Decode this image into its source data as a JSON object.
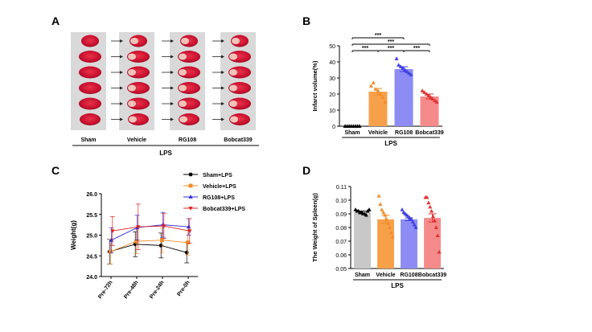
{
  "panels": {
    "a": {
      "letter": "A",
      "groups": [
        "Sham",
        "Vehicle",
        "RG108",
        "Bobcat339"
      ],
      "xlabel": "LPS"
    },
    "b": {
      "letter": "B"
    },
    "c": {
      "letter": "C"
    },
    "d": {
      "letter": "D"
    }
  },
  "chart_data": [
    {
      "panel": "B",
      "type": "bar",
      "categories": [
        "Sham",
        "Vehicle",
        "RG108",
        "Bobcat339"
      ],
      "values": [
        0,
        21.5,
        35.5,
        18.5
      ],
      "errors": [
        0,
        2.0,
        1.5,
        1.5
      ],
      "colors": [
        "#c8c8c8",
        "#f7a04a",
        "#8c8cf4",
        "#f48a8a"
      ],
      "point_colors": [
        "#000000",
        "#f28c28",
        "#3f3fe0",
        "#e03030"
      ],
      "points": [
        [
          0,
          0,
          0,
          0,
          0,
          0,
          0,
          0
        ],
        [
          25,
          27,
          23,
          22,
          20,
          18,
          15
        ],
        [
          42,
          38,
          37,
          36,
          35,
          34,
          33,
          32
        ],
        [
          22,
          21,
          20,
          19,
          18,
          17,
          16,
          15
        ]
      ],
      "ylabel": "Infarct volume(%)",
      "xlabel": "LPS",
      "ylim": [
        0,
        50
      ],
      "yticks": [
        0,
        10,
        20,
        30,
        40,
        50
      ],
      "significance": [
        {
          "from": 0,
          "to": 1,
          "label": "***"
        },
        {
          "from": 0,
          "to": 2,
          "label": "***"
        },
        {
          "from": 0,
          "to": 3,
          "label": "***"
        },
        {
          "from": 1,
          "to": 2,
          "label": "***"
        },
        {
          "from": 2,
          "to": 3,
          "label": "***"
        }
      ]
    },
    {
      "panel": "C",
      "type": "line",
      "x": [
        "Pre-72h",
        "Pre-48h",
        "Pre-24h",
        "Pre-0h"
      ],
      "ylabel": "Weight(g)",
      "ylim": [
        24.0,
        26.0
      ],
      "yticks": [
        24.0,
        24.5,
        25.0,
        25.5,
        26.0
      ],
      "legend_position": "top-right",
      "series": [
        {
          "name": "Sham+LPS",
          "color": "#000000",
          "marker": "circle",
          "values": [
            24.6,
            24.78,
            24.75,
            24.58
          ],
          "errors": [
            0.3,
            0.3,
            0.3,
            0.25
          ]
        },
        {
          "name": "Vehicle+LPS",
          "color": "#f28c28",
          "marker": "square",
          "values": [
            24.6,
            24.85,
            24.88,
            24.82
          ],
          "errors": [
            0.3,
            0.3,
            0.3,
            0.3
          ]
        },
        {
          "name": "RG108+LPS",
          "color": "#2f2fd8",
          "marker": "triangle-up",
          "values": [
            24.88,
            25.18,
            25.25,
            25.2
          ],
          "errors": [
            0.3,
            0.3,
            0.3,
            0.2
          ]
        },
        {
          "name": "Bobcat339+LPS",
          "color": "#e02020",
          "marker": "triangle-down",
          "values": [
            25.1,
            25.2,
            25.22,
            25.1
          ],
          "errors": [
            0.35,
            0.55,
            0.3,
            0.3
          ]
        }
      ]
    },
    {
      "panel": "D",
      "type": "bar",
      "categories": [
        "Sham",
        "Vehicle",
        "RG108",
        "Bobcat339"
      ],
      "values": [
        0.091,
        0.086,
        0.086,
        0.087
      ],
      "errors": [
        0.001,
        0.003,
        0.001,
        0.003
      ],
      "colors": [
        "#c8c8c8",
        "#f7a04a",
        "#8c8cf4",
        "#f48a8a"
      ],
      "point_colors": [
        "#000000",
        "#f28c28",
        "#3f3fe0",
        "#e03030"
      ],
      "points": [
        [
          0.093,
          0.092,
          0.092,
          0.091,
          0.091,
          0.09,
          0.09,
          0.089,
          0.092,
          0.093
        ],
        [
          0.103,
          0.097,
          0.093,
          0.091,
          0.089,
          0.086,
          0.083,
          0.08,
          0.076,
          0.073
        ],
        [
          0.093,
          0.091,
          0.09,
          0.089,
          0.088,
          0.087,
          0.086,
          0.084,
          0.082,
          0.08
        ],
        [
          0.102,
          0.102,
          0.098,
          0.095,
          0.092,
          0.088,
          0.085,
          0.08,
          0.074,
          0.062
        ]
      ],
      "ylabel": "The Weight of Spleen(g)",
      "xlabel": "LPS",
      "ylim": [
        0.05,
        0.11
      ],
      "yticks": [
        0.05,
        0.06,
        0.07,
        0.08,
        0.09,
        0.1,
        0.11
      ]
    }
  ]
}
